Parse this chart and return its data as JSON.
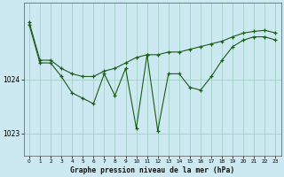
{
  "title": "Graphe pression niveau de la mer (hPa)",
  "bg_color": "#cce8f0",
  "grid_color": "#99ccbb",
  "line_color": "#1a5c1a",
  "marker_color": "#1a5c1a",
  "xlim": [
    -0.5,
    23.5
  ],
  "ylim": [
    1022.6,
    1025.4
  ],
  "yticks": [
    1023,
    1024
  ],
  "xticks": [
    0,
    1,
    2,
    3,
    4,
    5,
    6,
    7,
    8,
    9,
    10,
    11,
    12,
    13,
    14,
    15,
    16,
    17,
    18,
    19,
    20,
    21,
    22,
    23
  ],
  "series_top": [
    1025.05,
    1024.35,
    1024.35,
    1024.2,
    1024.1,
    1024.05,
    1024.05,
    1024.15,
    1024.2,
    1024.3,
    1024.4,
    1024.45,
    1024.45,
    1024.5,
    1024.5,
    1024.55,
    1024.6,
    1024.65,
    1024.7,
    1024.78,
    1024.85,
    1024.88,
    1024.9,
    1024.85
  ],
  "series_zigzag": [
    1025.0,
    1024.3,
    1024.3,
    1024.05,
    1023.75,
    1023.65,
    1023.55,
    1024.1,
    1023.7,
    1024.2,
    1023.1,
    1024.45,
    1023.05,
    1024.1,
    1024.1,
    1023.85,
    1023.8,
    1024.05,
    1024.35,
    1024.6,
    1024.72,
    1024.78,
    1024.78,
    1024.72
  ]
}
